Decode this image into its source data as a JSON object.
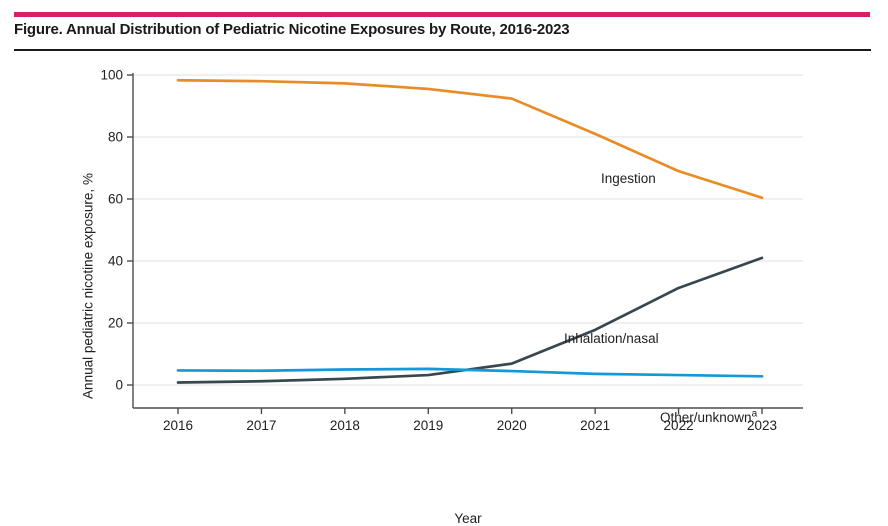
{
  "header": {
    "title": "Figure. Annual Distribution of Pediatric Nicotine Exposures by Route, 2016-2023",
    "accent_color": "#D91E68"
  },
  "chart_data": {
    "type": "line",
    "title": "Annual Distribution of Pediatric Nicotine Exposures by Route, 2016-2023",
    "categories": [
      "2016",
      "2017",
      "2018",
      "2019",
      "2020",
      "2021",
      "2022",
      "2023"
    ],
    "xlabel": "Year",
    "ylabel": "Annual pediatric nicotine exposure, %",
    "ylim": [
      0,
      100
    ],
    "yticks": [
      0,
      20,
      40,
      60,
      80,
      100
    ],
    "grid": "horizontal gridlines at each y tick",
    "legend_position": "inline labels next to lines",
    "series": [
      {
        "name": "Ingestion",
        "color": "#E88C28",
        "values": [
          98.3,
          98.0,
          97.3,
          95.5,
          92.4,
          81.0,
          69.0,
          60.4
        ]
      },
      {
        "name": "Inhalation/nasal",
        "color": "#37474F",
        "values": [
          0.8,
          1.2,
          2.0,
          3.2,
          6.9,
          17.8,
          31.3,
          41.0
        ]
      },
      {
        "name": "Other/unknown",
        "label_sup": "a",
        "color": "#1398D8",
        "values": [
          4.7,
          4.6,
          5.0,
          5.2,
          4.5,
          3.6,
          3.2,
          2.8
        ]
      }
    ],
    "style": {
      "grid_color": "#e8e8e8",
      "axis_color": "#4d4d4d",
      "text_color": "#212121"
    }
  }
}
